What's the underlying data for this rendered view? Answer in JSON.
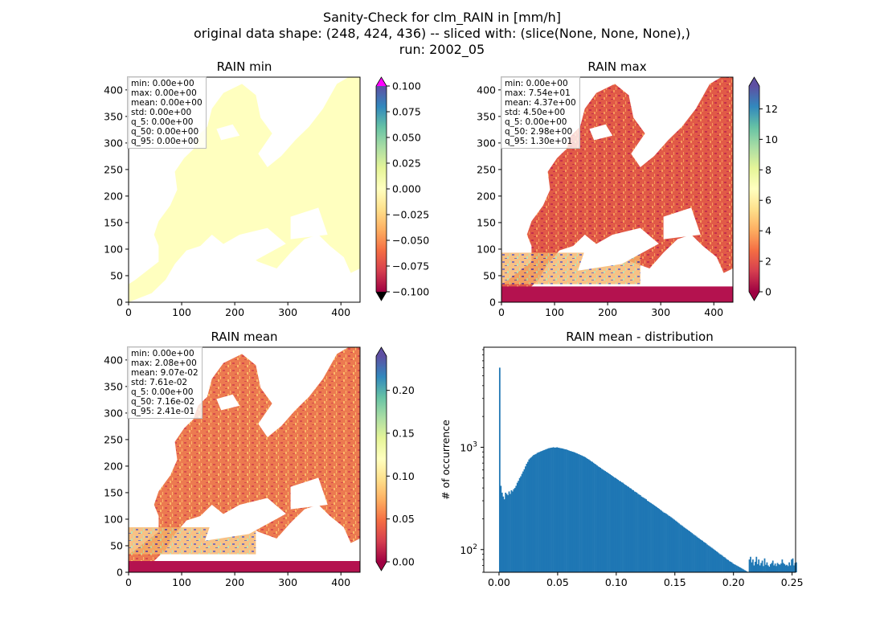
{
  "figure": {
    "title_lines": [
      "Sanity-Check for clm_RAIN in [mm/h]",
      "original data shape: (248, 424, 436) -- sliced with: (slice(None, None, None),)",
      "run: 2002_05"
    ]
  },
  "colormap": "Spectral",
  "colors": {
    "hist_bar": "#1f77b4",
    "land_min": "#ffffbf",
    "over_min": "#ff00ff"
  },
  "chart_data": [
    {
      "type": "heatmap",
      "title": "RAIN min",
      "xticks": [
        "0",
        "100",
        "200",
        "300",
        "400"
      ],
      "yticks": [
        "0",
        "50",
        "100",
        "150",
        "200",
        "250",
        "300",
        "350",
        "400"
      ],
      "xlim": [
        0,
        436
      ],
      "ylim": [
        0,
        424
      ],
      "colorbar": {
        "range": [
          -0.1,
          0.1
        ],
        "extend": "both",
        "ticks": [
          "0.100",
          "0.075",
          "0.050",
          "0.025",
          "0.000",
          "−0.025",
          "−0.050",
          "−0.075",
          "−0.100"
        ]
      },
      "stats": [
        "min: 0.00e+00",
        "max: 0.00e+00",
        "mean: 0.00e+00",
        "std: 0.00e+00",
        "q_5: 0.00e+00",
        "q_50: 0.00e+00",
        "q_95: 0.00e+00"
      ]
    },
    {
      "type": "heatmap",
      "title": "RAIN max",
      "xticks": [
        "0",
        "100",
        "200",
        "300",
        "400"
      ],
      "yticks": [
        "0",
        "50",
        "100",
        "150",
        "200",
        "250",
        "300",
        "350",
        "400"
      ],
      "xlim": [
        0,
        436
      ],
      "ylim": [
        0,
        424
      ],
      "colorbar": {
        "range": [
          0,
          13.5
        ],
        "extend": "both",
        "ticks": [
          "12",
          "10",
          "8",
          "6",
          "4",
          "2",
          "0"
        ]
      },
      "stats": [
        "min: 0.00e+00",
        "max: 7.54e+01",
        "mean: 4.37e+00",
        "std: 4.50e+00",
        "q_5: 0.00e+00",
        "q_50: 2.98e+00",
        "q_95: 1.30e+01"
      ]
    },
    {
      "type": "heatmap",
      "title": "RAIN mean",
      "xticks": [
        "0",
        "100",
        "200",
        "300",
        "400"
      ],
      "yticks": [
        "0",
        "50",
        "100",
        "150",
        "200",
        "250",
        "300",
        "350",
        "400"
      ],
      "xlim": [
        0,
        436
      ],
      "ylim": [
        0,
        424
      ],
      "colorbar": {
        "range": [
          0,
          0.24
        ],
        "extend": "both",
        "ticks": [
          "0.20",
          "0.15",
          "0.10",
          "0.05",
          "0.00"
        ]
      },
      "stats": [
        "min: 0.00e+00",
        "max: 2.08e+00",
        "mean: 9.07e-02",
        "std: 7.61e-02",
        "q_5: 0.00e+00",
        "q_50: 7.16e-02",
        "q_95: 2.41e-01"
      ]
    },
    {
      "type": "bar",
      "title": "RAIN mean - distribution",
      "ylabel": "# of occurrence",
      "yscale": "log",
      "xlim": [
        -0.013,
        0.253
      ],
      "ylim": [
        60,
        9500
      ],
      "xticks": [
        "0.00",
        "0.05",
        "0.10",
        "0.15",
        "0.20",
        "0.25"
      ],
      "yticks": [
        {
          "label": "10",
          "exp": "2",
          "value": 100
        },
        {
          "label": "10",
          "exp": "3",
          "value": 1000
        }
      ],
      "bins": {
        "start": 0.0,
        "width": 0.001
      },
      "values": [
        6000,
        420,
        360,
        330,
        310,
        360,
        350,
        340,
        370,
        350,
        380,
        370,
        390,
        400,
        420,
        450,
        470,
        500,
        520,
        550,
        580,
        610,
        650,
        690,
        720,
        760,
        780,
        800,
        820,
        840,
        850,
        860,
        880,
        890,
        900,
        910,
        920,
        930,
        940,
        950,
        960,
        970,
        980,
        985,
        990,
        995,
        1000,
        990,
        995,
        1000,
        990,
        985,
        980,
        975,
        970,
        960,
        955,
        950,
        940,
        930,
        920,
        915,
        905,
        900,
        890,
        880,
        870,
        860,
        850,
        840,
        830,
        820,
        810,
        800,
        785,
        770,
        760,
        745,
        730,
        720,
        705,
        690,
        680,
        665,
        650,
        640,
        630,
        615,
        605,
        595,
        585,
        575,
        565,
        555,
        545,
        535,
        525,
        515,
        505,
        500,
        490,
        480,
        470,
        465,
        455,
        450,
        440,
        430,
        425,
        415,
        410,
        400,
        395,
        385,
        380,
        370,
        365,
        360,
        350,
        345,
        340,
        330,
        325,
        320,
        315,
        310,
        300,
        295,
        290,
        285,
        280,
        275,
        270,
        265,
        260,
        255,
        250,
        245,
        240,
        235,
        230,
        228,
        224,
        220,
        215,
        212,
        208,
        204,
        200,
        196,
        192,
        188,
        184,
        180,
        176,
        173,
        170,
        166,
        163,
        160,
        157,
        154,
        151,
        148,
        145,
        142,
        139,
        137,
        134,
        131,
        129,
        126,
        124,
        122,
        119,
        117,
        115,
        112,
        110,
        108,
        106,
        104,
        102,
        100,
        98,
        96,
        94,
        92,
        90,
        89,
        87,
        85,
        84,
        82,
        80,
        79,
        77,
        76,
        75,
        73,
        72,
        71,
        70,
        69,
        68,
        67,
        66,
        65,
        64,
        63,
        62,
        61,
        60,
        80,
        85,
        75,
        80,
        70,
        76,
        85,
        72,
        80,
        70,
        74,
        78,
        69,
        82,
        71,
        75,
        70,
        68,
        72,
        74,
        78,
        70,
        73,
        69,
        74,
        72,
        71,
        73,
        80,
        74,
        72,
        70,
        71,
        69,
        75,
        70,
        80,
        82,
        70,
        74,
        75
      ]
    }
  ]
}
